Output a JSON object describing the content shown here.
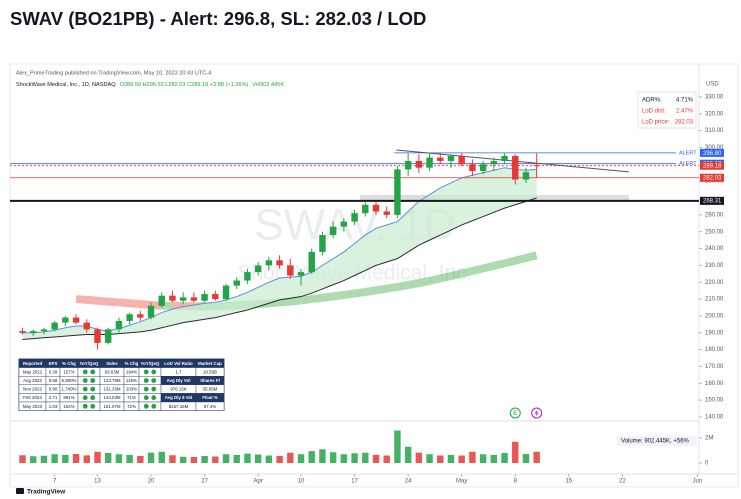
{
  "title": "SWAV (BO21PB) - Alert: 296.8, SL: 282.03 / LOD",
  "publisher": "Alex_PrimeTrading published on TradingView.com, May 10, 2023 20:43 UTC-4",
  "footer": "TradingView",
  "chart_data": {
    "type": "candlestick",
    "symbol": "ShockWave Medical, Inc., 1D, NASDAQ",
    "ohlc_legend": "O289.50 H296.53 L282.03 C289.18 +3.88 (+1.36%)",
    "vol_legend": "Vol902.445K",
    "watermark": "SWAV, 1D",
    "watermark_sub": "ShockWave Medical, Inc.",
    "currency": "USD",
    "up_color": "#22a447",
    "down_color": "#e53935",
    "open": [
      191,
      190,
      191,
      192,
      196,
      199,
      196,
      192,
      184,
      192,
      197,
      201,
      199,
      206,
      212,
      209,
      211,
      209,
      213,
      210,
      218,
      221,
      226,
      230,
      233,
      230,
      224,
      226,
      238,
      248,
      253,
      256,
      261,
      266,
      262,
      260,
      287,
      292,
      288,
      294,
      292,
      295,
      290,
      286,
      290,
      292,
      295,
      281,
      289.5
    ],
    "high": [
      193,
      192,
      193,
      197,
      200,
      201,
      198,
      193,
      193,
      199,
      202,
      203,
      208,
      214,
      215,
      214,
      214,
      215,
      215,
      219,
      223,
      228,
      232,
      235,
      236,
      234,
      228,
      240,
      250,
      256,
      258,
      263,
      268,
      268,
      265,
      289,
      297,
      296,
      297,
      297,
      296,
      297,
      293,
      292,
      294,
      297,
      296,
      288,
      296.53
    ],
    "low": [
      189,
      188,
      189,
      191,
      194,
      195,
      190,
      180,
      183,
      190,
      195,
      197,
      198,
      205,
      208,
      207,
      208,
      208,
      209,
      209,
      216,
      219,
      224,
      227,
      228,
      222,
      218,
      225,
      236,
      246,
      250,
      254,
      259,
      260,
      258,
      258,
      283,
      285,
      286,
      290,
      288,
      289,
      283,
      284,
      286,
      290,
      278,
      279,
      282.03
    ],
    "close": [
      190,
      191,
      192,
      196,
      199,
      196,
      192,
      184,
      192,
      197,
      201,
      199,
      206,
      212,
      209,
      211,
      209,
      213,
      210,
      218,
      221,
      226,
      230,
      233,
      230,
      224,
      226,
      238,
      248,
      253,
      256,
      261,
      266,
      262,
      260,
      287,
      292,
      288,
      294,
      292,
      295,
      290,
      286,
      290,
      292,
      295,
      281,
      285.3,
      289.18
    ],
    "volume": [
      620000,
      540000,
      580000,
      700000,
      650000,
      720000,
      610000,
      900000,
      800000,
      700000,
      650000,
      560000,
      830000,
      900000,
      620000,
      500000,
      480000,
      560000,
      520000,
      700000,
      640000,
      750000,
      680000,
      600000,
      560000,
      820000,
      700000,
      950000,
      1100000,
      860000,
      700000,
      780000,
      820000,
      650000,
      600000,
      2600000,
      1300000,
      820000,
      700000,
      600000,
      650000,
      600000,
      900000,
      700000,
      650000,
      800000,
      1700000,
      720000,
      902445
    ],
    "volume_label": "Volume: 902.445K, +56%",
    "volume_ylim": [
      0,
      3040000
    ],
    "volume_yticks": [
      {
        "value": 2000000,
        "label": "2M"
      },
      0
    ],
    "xlim": [
      -0.7,
      62.5
    ],
    "xticks": [
      {
        "value": 3,
        "label": "7"
      },
      {
        "value": 7,
        "label": "13"
      },
      {
        "value": 12,
        "label": "20"
      },
      {
        "value": 17,
        "label": "27"
      },
      {
        "value": 22,
        "label": "Apr"
      },
      {
        "value": 26,
        "label": "10"
      },
      {
        "value": 31,
        "label": "17"
      },
      {
        "value": 36,
        "label": "24"
      },
      {
        "value": 41,
        "label": "May"
      },
      {
        "value": 46,
        "label": "8"
      },
      {
        "value": 51,
        "label": "15"
      },
      {
        "value": 56,
        "label": "22"
      },
      {
        "value": 63,
        "label": "Jun"
      }
    ],
    "ylim": [
      138.2,
      337.1
    ],
    "yticks": [
      {
        "value": 330,
        "label": "330.00"
      },
      {
        "value": 320,
        "label": "320.00"
      },
      {
        "value": 310,
        "label": "310.00"
      },
      {
        "value": 300,
        "label": "300.00"
      },
      {
        "value": 280,
        "label": "280.00"
      },
      {
        "value": 260,
        "label": "260.00"
      },
      {
        "value": 250,
        "label": "250.00"
      },
      {
        "value": 240,
        "label": "240.00"
      },
      {
        "value": 230,
        "label": "230.00"
      },
      {
        "value": 220,
        "label": "220.00"
      },
      {
        "value": 210,
        "label": "210.00"
      },
      {
        "value": 200,
        "label": "200.00"
      },
      {
        "value": 190,
        "label": "190.00"
      },
      {
        "value": 180,
        "label": "180.00"
      },
      {
        "value": 170,
        "label": "170.00"
      },
      {
        "value": 160,
        "label": "160.00"
      },
      {
        "value": 150,
        "label": "150.00"
      },
      {
        "value": 140,
        "label": "140.00"
      }
    ],
    "overlays": [
      {
        "color": "#5b8fd9",
        "values": [
          190,
          190,
          190.5,
          191.5,
          193,
          194,
          194,
          192,
          191,
          192.5,
          194.5,
          196.5,
          199,
          202,
          204,
          205.5,
          206.5,
          207.5,
          208,
          209.5,
          211.5,
          214,
          217,
          220,
          222.5,
          223,
          223.5,
          226,
          230,
          234,
          238,
          243,
          248,
          252,
          254,
          256,
          262,
          268,
          272,
          276,
          279,
          282,
          283.5,
          285,
          286.5,
          288,
          287,
          286.5,
          287
        ]
      },
      {
        "color": "#2b2b2b",
        "values": [
          186,
          186.5,
          187,
          187.5,
          188,
          188.5,
          189,
          189,
          189,
          189.5,
          190,
          190.5,
          191.5,
          193,
          194.5,
          196,
          197,
          198,
          199,
          200.5,
          202,
          203.5,
          205.5,
          207.5,
          209.5,
          210.5,
          211.5,
          213.5,
          216,
          218.5,
          221,
          224,
          227,
          230,
          232,
          234,
          238,
          242,
          245,
          248,
          251,
          254,
          256.5,
          259,
          261.5,
          264,
          266,
          268,
          270
        ]
      }
    ],
    "fill_color": "#c9ecd0",
    "ribbon": {
      "up_color": "#4caf50",
      "down_color": "#ef5350",
      "values": [
        null,
        null,
        null,
        null,
        null,
        210,
        209.5,
        209,
        208.5,
        208,
        207.5,
        207,
        206.5,
        206,
        206,
        205.8,
        205.7,
        205.7,
        205.8,
        206,
        206.3,
        206.6,
        207,
        207.5,
        208,
        208.5,
        209.2,
        210,
        210.8,
        211.6,
        212.4,
        213.3,
        214.2,
        215.2,
        216.2,
        217.2,
        218.3,
        219.5,
        220.8,
        222.2,
        223.7,
        225.2,
        226.7,
        228.2,
        229.7,
        231.2,
        232.8,
        234.4,
        236
      ]
    },
    "levels": [
      {
        "value": 296.8,
        "label": "296.80",
        "color": "#2962ff",
        "text": "ALERT",
        "start": 34.7,
        "style": "solid"
      },
      {
        "value": 290.37,
        "label": "290.37",
        "color": "#2962ff",
        "text": "ALERT",
        "style": "solid"
      },
      {
        "value": 289.18,
        "label": "289.18",
        "color": "#e53935",
        "style": "dashed"
      },
      {
        "value": 282.03,
        "label": "282.03",
        "color": "#e53935",
        "style": "solid"
      },
      {
        "value": 268.31,
        "label": "268.31",
        "color": "#131722",
        "style": "thick"
      }
    ],
    "trendline": {
      "x": [
        34.9,
        56.6
      ],
      "y": [
        298.5,
        285.5
      ],
      "color": "#555"
    },
    "zone": {
      "x": [
        31.5,
        56.6
      ],
      "y": [
        268.31,
        271.8
      ],
      "color": "#d6d6d6"
    },
    "stats": [
      {
        "label": "ADR%:",
        "value": "4.71%",
        "color": "#131722"
      },
      {
        "label": "LoD dist:",
        "value": "2.47%",
        "color": "#e53935"
      },
      {
        "label": "LoD price:",
        "value": "282.03",
        "color": "#e53935"
      }
    ],
    "events": [
      {
        "x": 46,
        "label": "E",
        "color": "#22a447"
      },
      {
        "x": 48,
        "color": "#9c27b0"
      }
    ]
  },
  "table": {
    "header_color": "#1f3864",
    "dot_color": "#2e9e44",
    "header": [
      "Reported",
      "EPS",
      "% Chg",
      "YoY/QoQ",
      "Sales",
      "% Chg",
      "YoY/QoQ",
      "LoD Vol Ratio",
      "Market Cap"
    ],
    "rows": [
      [
        "May 2022",
        "0.39",
        "157%",
        null,
        "93.63M",
        "194%",
        null,
        "1.7",
        "10.56B"
      ],
      [
        "Aug 2022",
        "0.68",
        "6,900%",
        null,
        "123.75M",
        "116%",
        null,
        "Avg Dly Vol",
        "Shares Fl"
      ],
      [
        "Nov 2022",
        "0.90",
        "1,740%",
        null,
        "131.33M",
        "103%",
        null,
        "976.13K",
        "35.65M"
      ],
      [
        "Feb 2023",
        "2.71",
        "991%",
        null,
        "144.03M",
        "71%",
        null,
        "Avg Dly $ Vol",
        "Float %"
      ],
      [
        "May 2023",
        "1.03",
        "164%",
        null,
        "161.07M",
        "72%",
        null,
        "$167.16M",
        "97.4%"
      ]
    ]
  }
}
